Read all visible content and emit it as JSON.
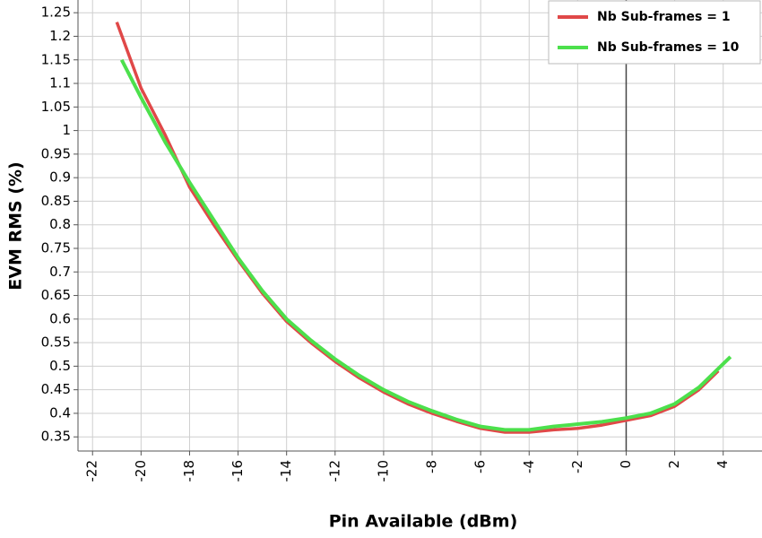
{
  "chart_data": {
    "type": "line",
    "x_label": "Pin Available (dBm)",
    "y_label": "EVM RMS (%)",
    "xlim": [
      -22.6,
      5.6
    ],
    "ylim": [
      0.32,
      1.277
    ],
    "xticks": [
      -22,
      -20,
      -18,
      -16,
      -14,
      -12,
      -10,
      -8,
      -6,
      -4,
      -2,
      0,
      2,
      4
    ],
    "yticks": [
      0.35,
      0.4,
      0.45,
      0.5,
      0.55,
      0.6,
      0.65,
      0.7,
      0.75,
      0.8,
      0.85,
      0.9,
      0.95,
      1,
      1.05,
      1.1,
      1.15,
      1.2,
      1.25
    ],
    "grid": true,
    "x_zero_line": true,
    "legend": "top-right",
    "series": [
      {
        "name": "Nb Sub-frames = 1",
        "color": "#e04848",
        "x": [
          -21,
          -20,
          -19,
          -18,
          -17,
          -16,
          -15,
          -14,
          -13,
          -12,
          -11,
          -10,
          -9,
          -8,
          -7,
          -6,
          -5,
          -4,
          -3,
          -2,
          -1,
          0,
          1,
          2,
          3,
          3.8
        ],
        "values": [
          1.23,
          1.09,
          0.99,
          0.88,
          0.8,
          0.725,
          0.655,
          0.595,
          0.55,
          0.51,
          0.475,
          0.445,
          0.42,
          0.4,
          0.383,
          0.368,
          0.36,
          0.36,
          0.365,
          0.368,
          0.375,
          0.385,
          0.395,
          0.415,
          0.45,
          0.49
        ]
      },
      {
        "name": "Nb Sub-frames = 10",
        "color": "#4ce04c",
        "x": [
          -20.8,
          -20,
          -19,
          -18,
          -17,
          -16,
          -15,
          -14,
          -13,
          -12,
          -11,
          -10,
          -9,
          -8,
          -7,
          -6,
          -5,
          -4,
          -3,
          -2,
          -1,
          0,
          1,
          2,
          3,
          4.3
        ],
        "values": [
          1.15,
          1.07,
          0.975,
          0.89,
          0.81,
          0.73,
          0.66,
          0.6,
          0.555,
          0.515,
          0.48,
          0.45,
          0.425,
          0.405,
          0.387,
          0.372,
          0.365,
          0.365,
          0.372,
          0.377,
          0.382,
          0.39,
          0.4,
          0.42,
          0.455,
          0.52
        ]
      }
    ]
  }
}
